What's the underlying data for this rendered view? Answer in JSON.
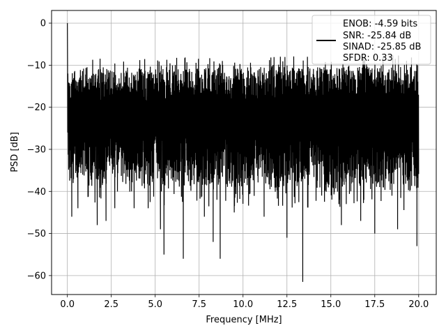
{
  "chart_data": {
    "type": "line",
    "title": "",
    "xlabel": "Frequency [MHz]",
    "ylabel": "PSD [dB]",
    "xlim": [
      -0.9,
      21.0
    ],
    "ylim": [
      -64.5,
      3.0
    ],
    "x_ticks": [
      0.0,
      2.5,
      5.0,
      7.5,
      10.0,
      12.5,
      15.0,
      17.5,
      20.0
    ],
    "x_tick_labels": [
      "0.0",
      "2.5",
      "5.0",
      "7.5",
      "10.0",
      "12.5",
      "15.0",
      "17.5",
      "20.0"
    ],
    "y_ticks": [
      0,
      -10,
      -20,
      -30,
      -40,
      -50,
      -60
    ],
    "y_tick_labels": [
      "0",
      "−10",
      "−20",
      "−30",
      "−40",
      "−50",
      "−60"
    ],
    "grid": true,
    "legend_position": "top-right",
    "legend_entries": [
      "ENOB: -4.59 bits",
      "SNR: -25.84 dB",
      "SINAD: -25.85 dB",
      "SFDR: 0.33"
    ],
    "series": [
      {
        "color": "#000000",
        "x_range": [
          0.0,
          20.0
        ],
        "peak": {
          "x": 0.0,
          "y": 0.0
        },
        "upper_envelope": [
          -11,
          -10
        ],
        "lower_envelope": [
          -38,
          -40
        ],
        "notable_minima": [
          {
            "x": 0.25,
            "y": -46
          },
          {
            "x": 0.6,
            "y": -44
          },
          {
            "x": 1.7,
            "y": -48
          },
          {
            "x": 2.2,
            "y": -47
          },
          {
            "x": 2.7,
            "y": -44
          },
          {
            "x": 3.8,
            "y": -44
          },
          {
            "x": 4.6,
            "y": -44
          },
          {
            "x": 5.3,
            "y": -49
          },
          {
            "x": 5.5,
            "y": -55
          },
          {
            "x": 6.6,
            "y": -56
          },
          {
            "x": 7.8,
            "y": -46
          },
          {
            "x": 8.3,
            "y": -52
          },
          {
            "x": 8.7,
            "y": -56
          },
          {
            "x": 9.5,
            "y": -45
          },
          {
            "x": 11.2,
            "y": -46
          },
          {
            "x": 12.5,
            "y": -51
          },
          {
            "x": 13.4,
            "y": -61.5
          },
          {
            "x": 15.6,
            "y": -48
          },
          {
            "x": 16.7,
            "y": -47
          },
          {
            "x": 17.5,
            "y": -50
          },
          {
            "x": 18.8,
            "y": -49
          },
          {
            "x": 19.9,
            "y": -53
          }
        ]
      }
    ]
  }
}
